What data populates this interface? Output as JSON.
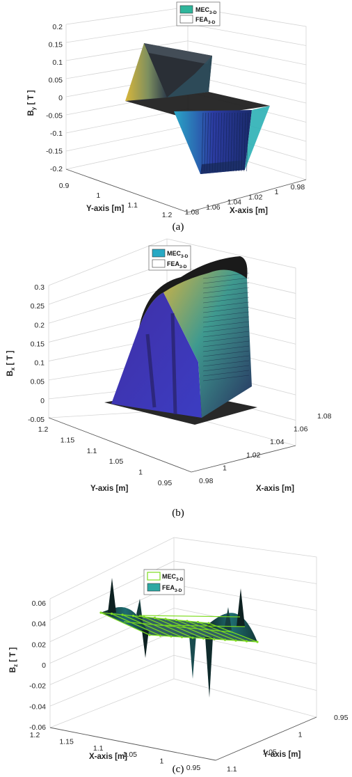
{
  "figure_labels": [
    "(a)",
    "(b)",
    "(c)"
  ],
  "chart_data": [
    {
      "type": "surface3d",
      "panel": "(a)",
      "zlabel": "B_y [ T ]",
      "xlabel": "X-axis [m]",
      "ylabel": "Y-axis [m]",
      "zticks": [
        "0.2",
        "0.15",
        "0.1",
        "0.05",
        "0",
        "-0.05",
        "-0.1",
        "-0.15",
        "-0.2"
      ],
      "xticks": [
        "1.08",
        "1.06",
        "1.04",
        "1.02",
        "1",
        "0.98"
      ],
      "yticks": [
        "0.9",
        "1",
        "1.1",
        "1.2"
      ],
      "zlim": [
        -0.2,
        0.2
      ],
      "xlim": [
        0.98,
        1.08
      ],
      "ylim": [
        0.9,
        1.2
      ],
      "legend": [
        "MEC_3-D",
        "FEA_3-D"
      ],
      "legend_colors": [
        "#2fb59b",
        "#ffffff"
      ],
      "shape": "antisymmetric step: about +0.15 T on one side, -0.15 T on the other, 0 elsewhere",
      "peak": 0.15,
      "trough": -0.15,
      "colormap": "parula"
    },
    {
      "type": "surface3d",
      "panel": "(b)",
      "zlabel": "B_x [ T ]",
      "xlabel": "X-axis [m]",
      "ylabel": "Y-axis [m]",
      "zticks": [
        "0.3",
        "0.25",
        "0.2",
        "0.15",
        "0.1",
        "0.05",
        "0",
        "-0.05"
      ],
      "xticks": [
        "0.98",
        "1",
        "1.02",
        "1.04",
        "1.06",
        "1.08"
      ],
      "yticks": [
        "1.2",
        "1.15",
        "1.1",
        "1.05",
        "1",
        "0.95"
      ],
      "zlim": [
        -0.05,
        0.3
      ],
      "xlim": [
        0.98,
        1.08
      ],
      "ylim": [
        0.95,
        1.2
      ],
      "legend": [
        "MEC_3-D",
        "FEA_3-D"
      ],
      "legend_colors": [
        "#28a9c4",
        "#ffffff"
      ],
      "shape": "single plateau hump centred on the domain",
      "peak": 0.29,
      "colormap": "parula"
    },
    {
      "type": "surface3d",
      "panel": "(c)",
      "zlabel": "B_z [ T ]",
      "xlabel": "X-axis [m]",
      "ylabel": "Y-axis [m]",
      "zticks": [
        "0.06",
        "0.04",
        "0.02",
        "0",
        "-0.02",
        "-0.04",
        "-0.06"
      ],
      "xticks": [
        "1.2",
        "1.15",
        "1.1",
        "1.05",
        "1",
        "0.95"
      ],
      "yticks": [
        "1.1",
        "1.05",
        "1",
        "0.95"
      ],
      "zlim": [
        -0.06,
        0.06
      ],
      "xlim": [
        0.95,
        1.2
      ],
      "ylim": [
        0.95,
        1.1
      ],
      "legend": [
        "MEC_3-D",
        "FEA_3-D"
      ],
      "legend_colors": [
        "#7ddc1f",
        "#2ba8a2"
      ],
      "shape": "near-zero field with edge spikes up to about ±0.05 T",
      "peak": 0.045,
      "trough": -0.045,
      "colormap": "parula"
    }
  ]
}
